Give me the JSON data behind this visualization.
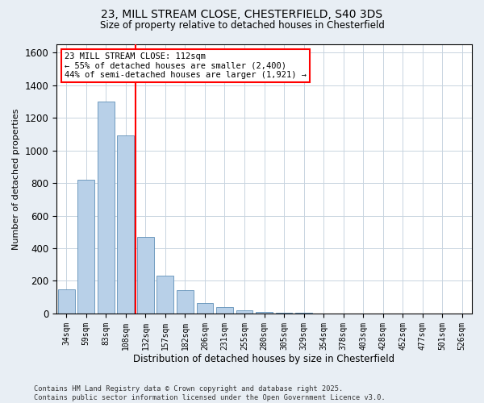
{
  "title_line1": "23, MILL STREAM CLOSE, CHESTERFIELD, S40 3DS",
  "title_line2": "Size of property relative to detached houses in Chesterfield",
  "xlabel": "Distribution of detached houses by size in Chesterfield",
  "ylabel": "Number of detached properties",
  "categories": [
    "34sqm",
    "59sqm",
    "83sqm",
    "108sqm",
    "132sqm",
    "157sqm",
    "182sqm",
    "206sqm",
    "231sqm",
    "255sqm",
    "280sqm",
    "305sqm",
    "329sqm",
    "354sqm",
    "378sqm",
    "403sqm",
    "428sqm",
    "452sqm",
    "477sqm",
    "501sqm",
    "526sqm"
  ],
  "values": [
    150,
    820,
    1300,
    1090,
    470,
    230,
    145,
    65,
    40,
    18,
    8,
    3,
    3,
    1,
    1,
    0,
    0,
    0,
    0,
    0,
    0
  ],
  "bar_color": "#b8d0e8",
  "bar_edge_color": "#6090b8",
  "vline_color": "red",
  "vline_pos": 3.5,
  "annotation_text": "23 MILL STREAM CLOSE: 112sqm\n← 55% of detached houses are smaller (2,400)\n44% of semi-detached houses are larger (1,921) →",
  "annotation_box_color": "white",
  "annotation_box_edge": "red",
  "ylim": [
    0,
    1650
  ],
  "yticks": [
    0,
    200,
    400,
    600,
    800,
    1000,
    1200,
    1400,
    1600
  ],
  "footer_line1": "Contains HM Land Registry data © Crown copyright and database right 2025.",
  "footer_line2": "Contains public sector information licensed under the Open Government Licence v3.0.",
  "bg_color": "#e8eef4",
  "plot_bg_color": "#ffffff",
  "grid_color": "#c8d4e0"
}
